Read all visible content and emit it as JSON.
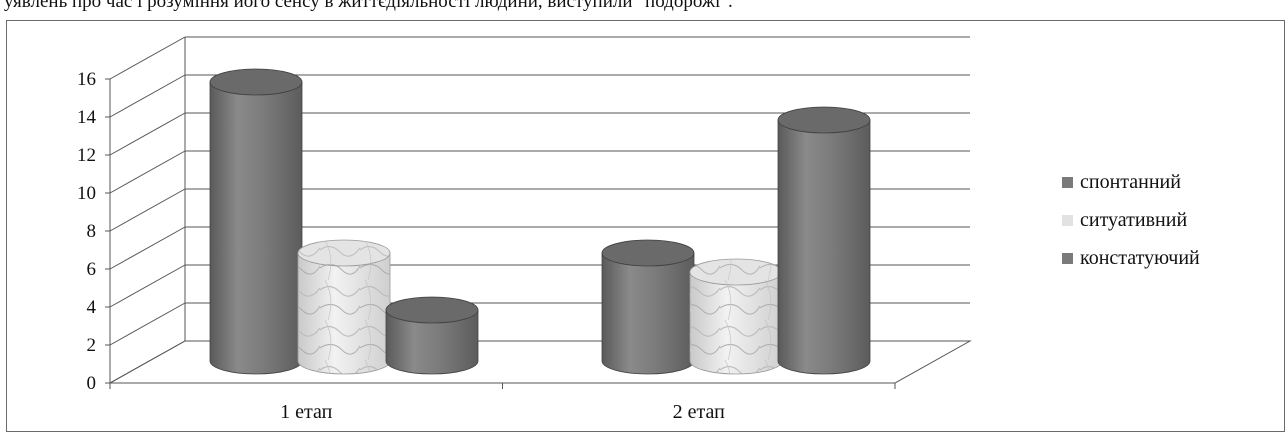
{
  "page": {
    "top_text": "уявлень про час і розуміння його сенсу в життєдіяльності людини, виступили \"подорожі\"."
  },
  "chart_data": {
    "type": "bar",
    "style": "3d-cylinder",
    "categories": [
      "1 етап",
      "2 етап"
    ],
    "series": [
      {
        "name": "спонтанний",
        "values": [
          15,
          6
        ],
        "color": "#7a7a7a"
      },
      {
        "name": "ситуативний",
        "values": [
          6,
          5
        ],
        "color": "#dcdcdc",
        "pattern": "marble"
      },
      {
        "name": "констатуючий",
        "values": [
          3,
          13
        ],
        "color": "#7a7a7a"
      }
    ],
    "ylim": [
      0,
      16
    ],
    "yticks": [
      "0",
      "2",
      "4",
      "6",
      "8",
      "10",
      "12",
      "14",
      "16"
    ],
    "grid": true,
    "legend": "right"
  }
}
